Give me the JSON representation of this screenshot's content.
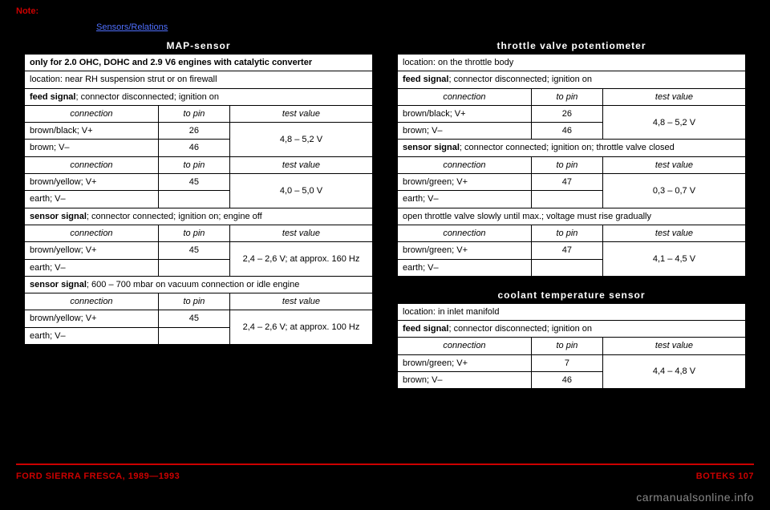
{
  "header": {
    "note_label": "Note:",
    "link_text": "Sensors/Relations"
  },
  "left": {
    "title": "MAP-sensor",
    "row_note": "only for 2.0 OHC, DOHC and 2.9 V6 engines with catalytic converter",
    "location": "location: near RH suspension strut or on firewall",
    "feed_label": "feed signal",
    "feed_rest": "; connector disconnected; ignition on",
    "h_conn": "connection",
    "h_pin": "to pin",
    "h_val": "test value",
    "r1_conn": "brown/black; V+",
    "r1_pin": "26",
    "r_val_1": "4,8 – 5,2 V",
    "r2_conn": "brown; V–",
    "r2_pin": "46",
    "r3_conn": "brown/yellow; V+",
    "r3_pin": "45",
    "r_val_2": "4,0 – 5,0 V",
    "r4_conn": "earth; V–",
    "sensor1_label": "sensor signal",
    "sensor1_rest": "; connector connected; ignition on; engine off",
    "r5_conn": "brown/yellow; V+",
    "r5_pin": "45",
    "r_val_3": "2,4 – 2,6 V; at approx. 160 Hz",
    "r6_conn": "earth; V–",
    "sensor2_label": "sensor signal",
    "sensor2_rest": "; 600 – 700 mbar on vacuum connection or idle engine",
    "r7_conn": "brown/yellow; V+",
    "r7_pin": "45",
    "r_val_4": "2,4 – 2,6 V; at approx. 100 Hz",
    "r8_conn": "earth; V–"
  },
  "right_a": {
    "title": "throttle valve potentiometer",
    "location": "location: on the throttle body",
    "feed_label": "feed signal",
    "feed_rest": "; connector disconnected; ignition on",
    "h_conn": "connection",
    "h_pin": "to pin",
    "h_val": "test value",
    "r1_conn": "brown/black; V+",
    "r1_pin": "26",
    "r_val_1": "4,8 – 5,2 V",
    "r2_conn": "brown; V–",
    "r2_pin": "46",
    "sensor_label": "sensor signal",
    "sensor_rest": "; connector connected; ignition on; throttle valve closed",
    "r3_conn": "brown/green; V+",
    "r3_pin": "47",
    "r_val_2": "0,3 – 0,7 V",
    "r4_conn": "earth; V–",
    "open_note": "open throttle valve slowly until max.; voltage must rise gradually",
    "r5_conn": "brown/green; V+",
    "r5_pin": "47",
    "r_val_3": "4,1 – 4,5 V",
    "r6_conn": "earth; V–"
  },
  "right_b": {
    "title": "coolant temperature sensor",
    "location": "location: in inlet manifold",
    "feed_label": "feed signal",
    "feed_rest": "; connector disconnected; ignition on",
    "h_conn": "connection",
    "h_pin": "to pin",
    "h_val": "test value",
    "r1_conn": "brown/green; V+",
    "r1_pin": "7",
    "r_val_1": "4,4 – 4,8 V",
    "r2_conn": "brown; V–",
    "r2_pin": "46"
  },
  "footer": {
    "left": "FORD SIERRA FRESCA, 1989—1993",
    "right": "BOTEKS    107"
  },
  "watermark": "carmanualsonline.info"
}
